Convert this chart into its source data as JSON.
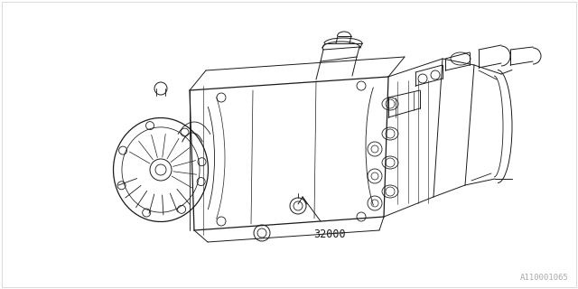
{
  "background_color": "#ffffff",
  "line_color": "#1a1a1a",
  "part_number": "32000",
  "diagram_code": "A110001065",
  "lw": 0.7,
  "lw_outer": 0.9,
  "label_fontsize": 8.5,
  "code_fontsize": 6.5,
  "figsize": [
    6.4,
    3.2
  ],
  "dpi": 100
}
